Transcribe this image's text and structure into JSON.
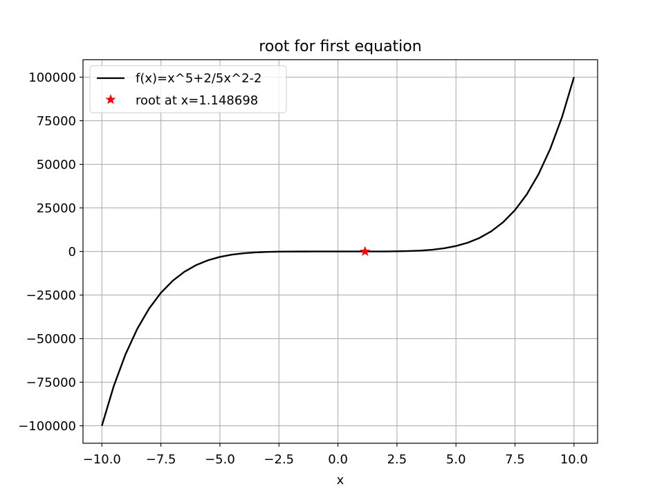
{
  "chart_data": {
    "type": "line",
    "title": "root for first equation",
    "xlabel": "x",
    "ylabel": "",
    "xlim": [
      -10.8,
      11.0
    ],
    "ylim": [
      -110000,
      110000
    ],
    "grid": true,
    "legend_position": "top-left",
    "x_ticks": [
      -10.0,
      -7.5,
      -5.0,
      -2.5,
      0.0,
      2.5,
      5.0,
      7.5,
      10.0
    ],
    "x_tick_labels": [
      "−10.0",
      "−7.5",
      "−5.0",
      "−2.5",
      "0.0",
      "2.5",
      "5.0",
      "7.5",
      "10.0"
    ],
    "y_ticks": [
      -100000,
      -75000,
      -50000,
      -25000,
      0,
      25000,
      50000,
      75000,
      100000
    ],
    "y_tick_labels": [
      "−100000",
      "−75000",
      "−50000",
      "−25000",
      "0",
      "25000",
      "50000",
      "75000",
      "100000"
    ],
    "series": [
      {
        "name": "f(x)=x^5+2/5x^2-2",
        "kind": "line",
        "color": "#000000",
        "x": [
          -10,
          -9.5,
          -9,
          -8.5,
          -8,
          -7.5,
          -7,
          -6.5,
          -6,
          -5.5,
          -5,
          -4.5,
          -4,
          -3.5,
          -3,
          -2.5,
          -2,
          -1.5,
          -1,
          -0.5,
          0,
          0.5,
          1,
          1.5,
          2,
          2.5,
          3,
          3.5,
          4,
          4.5,
          5,
          5.5,
          6,
          6.5,
          7,
          7.5,
          8,
          8.5,
          9,
          9.5,
          10
        ],
        "y": [
          -99962,
          -77343.7,
          -59019.6,
          -44342.8,
          -32744.4,
          -23709.3,
          -16789.4,
          -11586.2,
          -7763.6,
          -5023.2,
          -3117,
          -1839.1,
          -1019.6,
          -522.3,
          -241.4,
          -97.2,
          -32.4,
          -8.7,
          -2.6,
          -2,
          -2,
          -1.9,
          -0.6,
          6.5,
          31.6,
          96.2,
          244.6,
          525.1,
          1028.8,
          1853.3,
          3133,
          5043.5,
          7788.4,
          11615.8,
          16824.6,
          23749.3,
          32790.4,
          44394.2,
          59079.6,
          77409.7,
          100038
        ]
      },
      {
        "name": "root at x=1.148698",
        "kind": "marker",
        "marker": "star",
        "color": "#ff0000",
        "x": [
          1.148698
        ],
        "y": [
          0
        ]
      }
    ]
  }
}
